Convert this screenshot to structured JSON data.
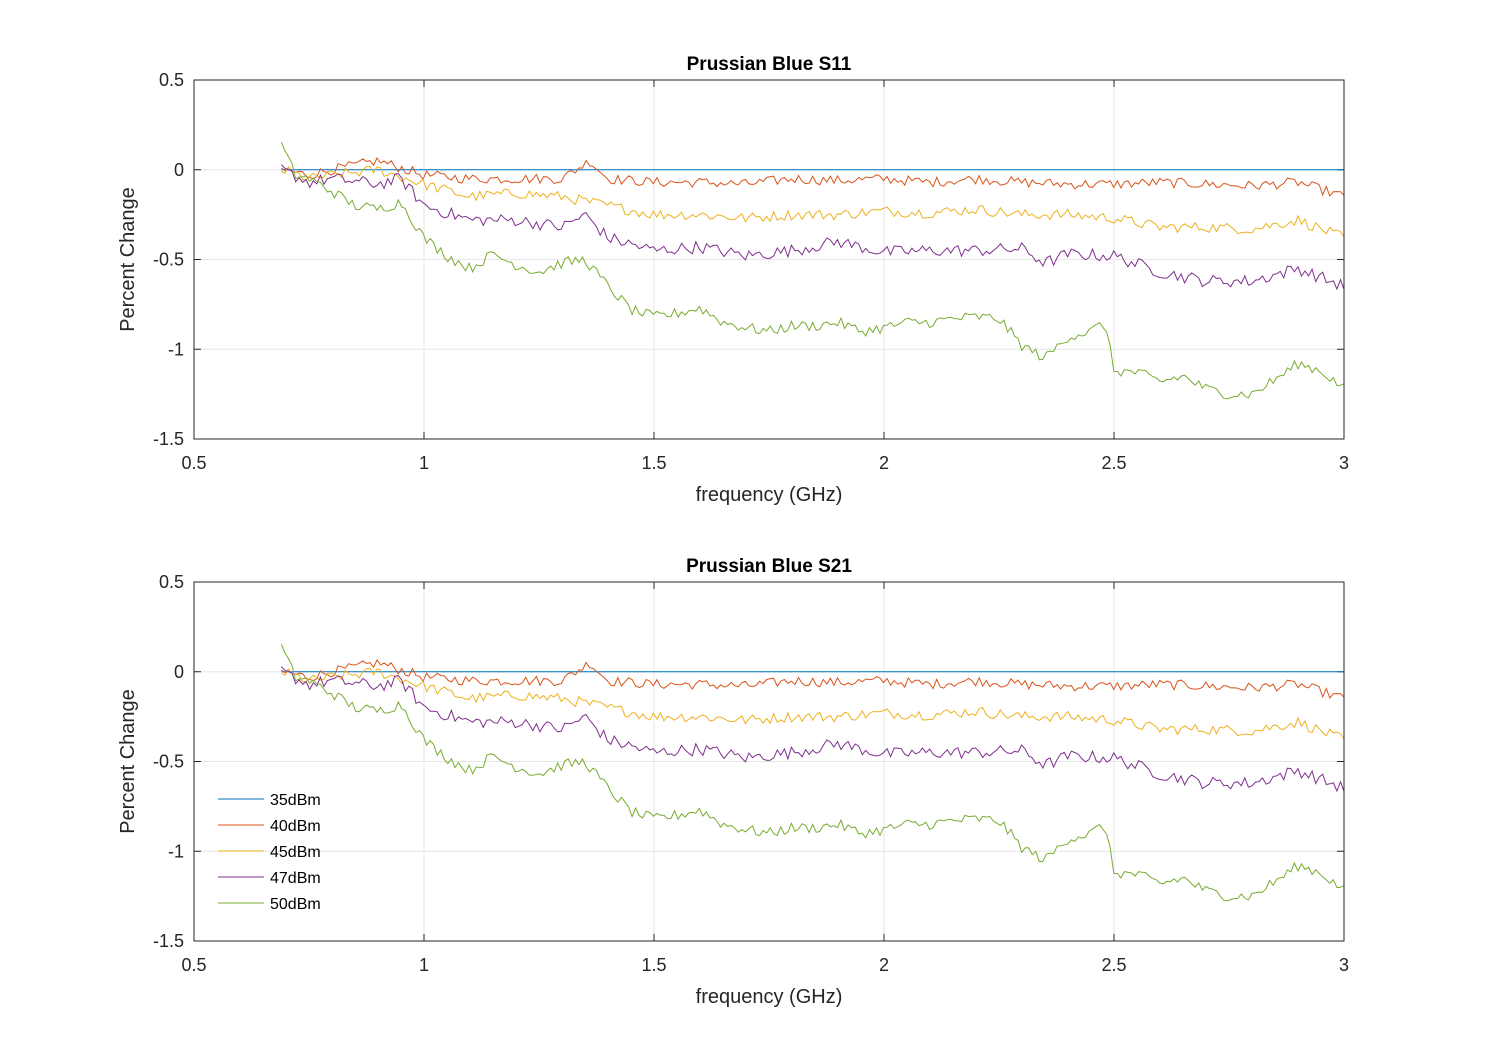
{
  "colors": {
    "35dBm": "#0072BD",
    "40dBm": "#D95319",
    "45dBm": "#EDB120",
    "47dBm": "#7E2F8E",
    "50dBm": "#77AC30",
    "grid": "#e6e6e6",
    "axis": "#262626"
  },
  "chart_data": [
    {
      "type": "line",
      "title": "Prussian Blue S11",
      "xlabel": "frequency (GHz)",
      "ylabel": "Percent Change",
      "xlim": [
        0.5,
        3
      ],
      "ylim": [
        -1.5,
        0.5
      ],
      "xticks": [
        "0.5",
        "1",
        "1.5",
        "2",
        "2.5",
        "3"
      ],
      "yticks": [
        "0.5",
        "0",
        "-0.5",
        "-1",
        "-1.5"
      ],
      "grid": true,
      "legend": null,
      "x_range": [
        0.69,
        3.0
      ],
      "series": [
        {
          "name": "35dBm",
          "x": [
            0.69,
            3.0
          ],
          "values": [
            0,
            0
          ]
        },
        {
          "name": "40dBm",
          "x": [
            0.69,
            0.75,
            0.8,
            0.9,
            1.0,
            1.1,
            1.2,
            1.3,
            1.36,
            1.4,
            1.5,
            1.6,
            1.7,
            1.8,
            1.9,
            2.0,
            2.1,
            2.2,
            2.3,
            2.4,
            2.5,
            2.6,
            2.7,
            2.8,
            2.9,
            3.0
          ],
          "values": [
            0.0,
            -0.03,
            0.0,
            0.05,
            -0.03,
            -0.05,
            -0.05,
            -0.05,
            0.05,
            -0.05,
            -0.07,
            -0.07,
            -0.08,
            -0.05,
            -0.06,
            -0.05,
            -0.07,
            -0.05,
            -0.07,
            -0.08,
            -0.08,
            -0.07,
            -0.08,
            -0.09,
            -0.07,
            -0.15
          ]
        },
        {
          "name": "45dBm",
          "x": [
            0.69,
            0.75,
            0.8,
            0.9,
            1.0,
            1.1,
            1.2,
            1.3,
            1.4,
            1.5,
            1.6,
            1.7,
            1.8,
            1.9,
            2.0,
            2.1,
            2.2,
            2.3,
            2.4,
            2.5,
            2.6,
            2.7,
            2.8,
            2.9,
            3.0
          ],
          "values": [
            0.0,
            -0.05,
            -0.03,
            0.0,
            -0.08,
            -0.15,
            -0.13,
            -0.15,
            -0.2,
            -0.25,
            -0.25,
            -0.27,
            -0.25,
            -0.25,
            -0.23,
            -0.24,
            -0.22,
            -0.25,
            -0.25,
            -0.27,
            -0.32,
            -0.32,
            -0.33,
            -0.28,
            -0.38
          ]
        },
        {
          "name": "47dBm",
          "x": [
            0.69,
            0.75,
            0.8,
            0.9,
            0.95,
            1.0,
            1.1,
            1.2,
            1.3,
            1.35,
            1.4,
            1.5,
            1.6,
            1.7,
            1.8,
            1.9,
            2.0,
            2.1,
            2.2,
            2.3,
            2.35,
            2.4,
            2.5,
            2.6,
            2.7,
            2.8,
            2.9,
            3.0
          ],
          "values": [
            0.0,
            -0.07,
            -0.05,
            -0.08,
            -0.05,
            -0.2,
            -0.28,
            -0.28,
            -0.32,
            -0.25,
            -0.38,
            -0.45,
            -0.43,
            -0.48,
            -0.45,
            -0.4,
            -0.46,
            -0.45,
            -0.45,
            -0.44,
            -0.52,
            -0.47,
            -0.48,
            -0.57,
            -0.62,
            -0.62,
            -0.55,
            -0.65
          ]
        },
        {
          "name": "50dBm",
          "x": [
            0.69,
            0.72,
            0.75,
            0.8,
            0.85,
            0.9,
            0.95,
            1.0,
            1.05,
            1.1,
            1.15,
            1.2,
            1.25,
            1.3,
            1.35,
            1.4,
            1.45,
            1.5,
            1.55,
            1.6,
            1.65,
            1.7,
            1.75,
            1.8,
            1.85,
            1.9,
            1.95,
            2.0,
            2.05,
            2.1,
            2.15,
            2.2,
            2.25,
            2.3,
            2.35,
            2.4,
            2.45,
            2.48,
            2.5,
            2.55,
            2.6,
            2.65,
            2.7,
            2.75,
            2.8,
            2.85,
            2.9,
            2.95,
            3.0
          ],
          "values": [
            0.14,
            -0.03,
            -0.05,
            -0.12,
            -0.2,
            -0.22,
            -0.18,
            -0.38,
            -0.48,
            -0.55,
            -0.47,
            -0.53,
            -0.57,
            -0.52,
            -0.5,
            -0.65,
            -0.78,
            -0.82,
            -0.8,
            -0.77,
            -0.85,
            -0.88,
            -0.9,
            -0.87,
            -0.87,
            -0.85,
            -0.9,
            -0.88,
            -0.85,
            -0.85,
            -0.83,
            -0.82,
            -0.83,
            -0.98,
            -1.05,
            -0.93,
            -0.9,
            -0.85,
            -1.12,
            -1.13,
            -1.18,
            -1.15,
            -1.22,
            -1.25,
            -1.25,
            -1.17,
            -1.08,
            -1.12,
            -1.22
          ]
        }
      ]
    },
    {
      "type": "line",
      "title": "Prussian Blue S21",
      "xlabel": "frequency (GHz)",
      "ylabel": "Percent Change",
      "xlim": [
        0.5,
        3
      ],
      "ylim": [
        -1.5,
        0.5
      ],
      "xticks": [
        "0.5",
        "1",
        "1.5",
        "2",
        "2.5",
        "3"
      ],
      "yticks": [
        "0.5",
        "0",
        "-0.5",
        "-1",
        "-1.5"
      ],
      "grid": true,
      "legend": "bottom-left",
      "x_range": [
        0.69,
        3.0
      ],
      "series": [
        {
          "name": "35dBm",
          "x": [
            0.69,
            3.0
          ],
          "values": [
            0,
            0
          ]
        },
        {
          "name": "40dBm",
          "x": [
            0.69,
            0.75,
            0.8,
            0.9,
            1.0,
            1.1,
            1.2,
            1.3,
            1.36,
            1.4,
            1.5,
            1.6,
            1.7,
            1.8,
            1.9,
            2.0,
            2.1,
            2.2,
            2.3,
            2.4,
            2.5,
            2.6,
            2.7,
            2.8,
            2.9,
            3.0
          ],
          "values": [
            0.0,
            -0.03,
            0.0,
            0.05,
            -0.03,
            -0.05,
            -0.05,
            -0.05,
            0.05,
            -0.05,
            -0.07,
            -0.07,
            -0.08,
            -0.05,
            -0.06,
            -0.05,
            -0.07,
            -0.05,
            -0.07,
            -0.08,
            -0.08,
            -0.07,
            -0.08,
            -0.09,
            -0.07,
            -0.15
          ]
        },
        {
          "name": "45dBm",
          "x": [
            0.69,
            0.75,
            0.8,
            0.9,
            1.0,
            1.1,
            1.2,
            1.3,
            1.4,
            1.5,
            1.6,
            1.7,
            1.8,
            1.9,
            2.0,
            2.1,
            2.2,
            2.3,
            2.4,
            2.5,
            2.6,
            2.7,
            2.8,
            2.9,
            3.0
          ],
          "values": [
            0.0,
            -0.05,
            -0.03,
            0.0,
            -0.08,
            -0.15,
            -0.13,
            -0.15,
            -0.2,
            -0.25,
            -0.25,
            -0.27,
            -0.25,
            -0.25,
            -0.23,
            -0.24,
            -0.22,
            -0.25,
            -0.25,
            -0.27,
            -0.32,
            -0.32,
            -0.33,
            -0.28,
            -0.38
          ]
        },
        {
          "name": "47dBm",
          "x": [
            0.69,
            0.75,
            0.8,
            0.9,
            0.95,
            1.0,
            1.1,
            1.2,
            1.3,
            1.35,
            1.4,
            1.5,
            1.6,
            1.7,
            1.8,
            1.9,
            2.0,
            2.1,
            2.2,
            2.3,
            2.35,
            2.4,
            2.5,
            2.6,
            2.7,
            2.8,
            2.9,
            3.0
          ],
          "values": [
            0.0,
            -0.07,
            -0.05,
            -0.08,
            -0.05,
            -0.2,
            -0.28,
            -0.28,
            -0.32,
            -0.25,
            -0.38,
            -0.45,
            -0.43,
            -0.48,
            -0.45,
            -0.4,
            -0.46,
            -0.45,
            -0.45,
            -0.44,
            -0.52,
            -0.47,
            -0.48,
            -0.57,
            -0.62,
            -0.62,
            -0.55,
            -0.65
          ]
        },
        {
          "name": "50dBm",
          "x": [
            0.69,
            0.72,
            0.75,
            0.8,
            0.85,
            0.9,
            0.95,
            1.0,
            1.05,
            1.1,
            1.15,
            1.2,
            1.25,
            1.3,
            1.35,
            1.4,
            1.45,
            1.5,
            1.55,
            1.6,
            1.65,
            1.7,
            1.75,
            1.8,
            1.85,
            1.9,
            1.95,
            2.0,
            2.05,
            2.1,
            2.15,
            2.2,
            2.25,
            2.3,
            2.35,
            2.4,
            2.45,
            2.48,
            2.5,
            2.55,
            2.6,
            2.65,
            2.7,
            2.75,
            2.8,
            2.85,
            2.9,
            2.95,
            3.0
          ],
          "values": [
            0.14,
            -0.03,
            -0.05,
            -0.12,
            -0.2,
            -0.22,
            -0.18,
            -0.38,
            -0.48,
            -0.55,
            -0.47,
            -0.53,
            -0.57,
            -0.52,
            -0.5,
            -0.65,
            -0.78,
            -0.82,
            -0.8,
            -0.77,
            -0.85,
            -0.88,
            -0.9,
            -0.87,
            -0.87,
            -0.85,
            -0.9,
            -0.88,
            -0.85,
            -0.85,
            -0.83,
            -0.82,
            -0.83,
            -0.98,
            -1.05,
            -0.93,
            -0.9,
            -0.85,
            -1.12,
            -1.13,
            -1.18,
            -1.15,
            -1.22,
            -1.25,
            -1.25,
            -1.17,
            -1.08,
            -1.12,
            -1.22
          ]
        }
      ]
    }
  ]
}
